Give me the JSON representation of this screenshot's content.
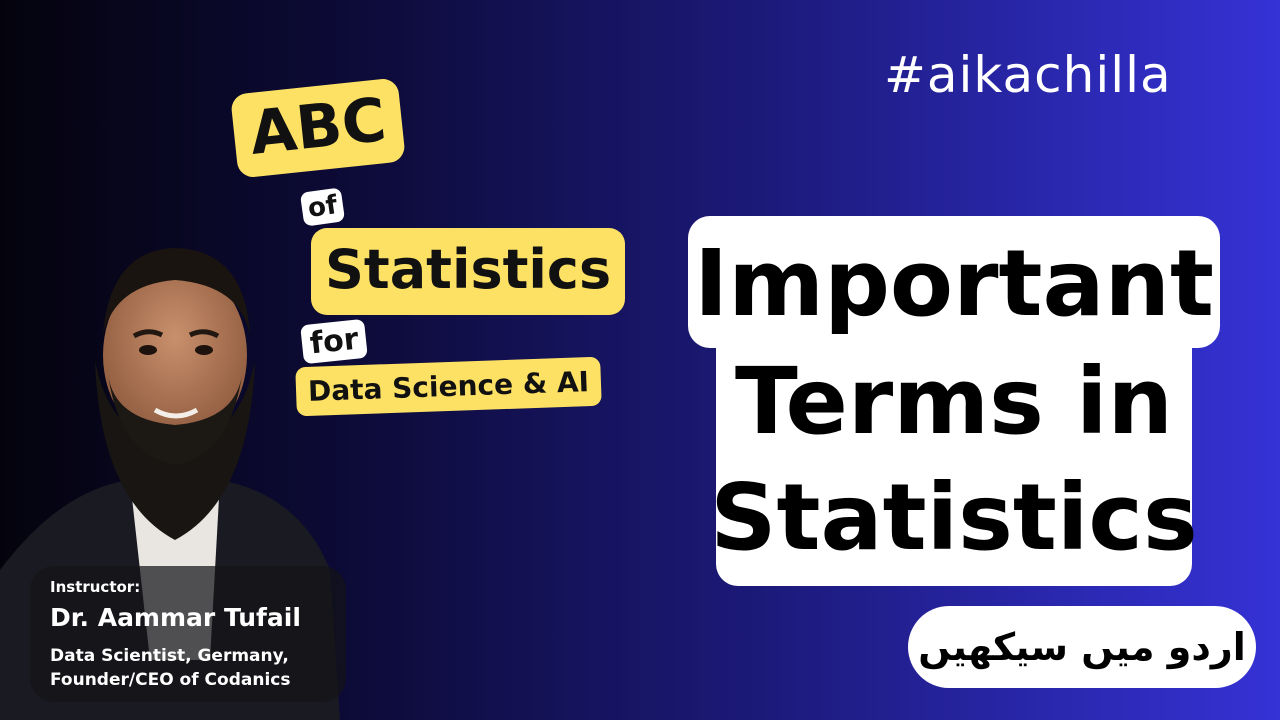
{
  "hashtag": "#aikachilla",
  "series": {
    "abc": "ABC",
    "of": "of",
    "statistics": "Statistics",
    "for": "for",
    "audience": "Data Science & AI"
  },
  "title": {
    "line1": "Important",
    "line2": "Terms in",
    "line3": "Statistics"
  },
  "language_badge": "اردو میں سیکھیں",
  "instructor": {
    "role": "Instructor:",
    "name": "Dr. Aammar Tufail",
    "desc_line1": "Data Scientist, Germany,",
    "desc_line2": "Founder/CEO of Codanics"
  },
  "colors": {
    "chip_yellow": "#fde164",
    "bg_left": "#04030d",
    "bg_right": "#3532d6"
  }
}
